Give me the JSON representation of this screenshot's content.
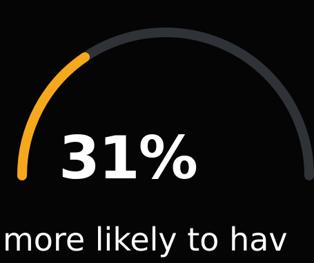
{
  "chart_data": {
    "type": "gauge",
    "value": 31,
    "min": 0,
    "max": 100,
    "value_label": "31%",
    "caption": "more likely to hav"
  },
  "colors": {
    "background": "#050505",
    "track": "#2f3236",
    "fill": "#f5a81c",
    "text": "#ffffff"
  }
}
